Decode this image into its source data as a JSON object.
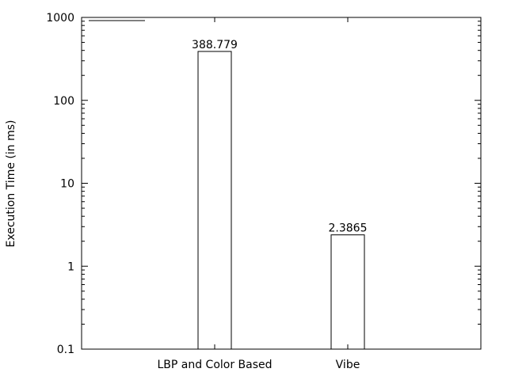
{
  "chart_data": {
    "type": "bar",
    "categories": [
      "LBP and Color Based",
      "Vibe"
    ],
    "values": [
      388.779,
      2.3865
    ],
    "data_labels": [
      "388.779",
      "2.3865"
    ],
    "ylabel": "Execution Time (in ms)",
    "y_scale": "log",
    "ylim": [
      0.1,
      1000
    ],
    "y_ticks": [
      {
        "value": 0.1,
        "label": "0.1"
      },
      {
        "value": 1,
        "label": "1"
      },
      {
        "value": 10,
        "label": "10"
      },
      {
        "value": 100,
        "label": "100"
      },
      {
        "value": 1000,
        "label": "1000"
      }
    ],
    "grid": false,
    "legend": "top-left",
    "legend_entries": [
      ""
    ],
    "colors": {
      "bar_fill": "#ffffff",
      "bar_stroke": "#000000",
      "axis": "#000000"
    }
  }
}
